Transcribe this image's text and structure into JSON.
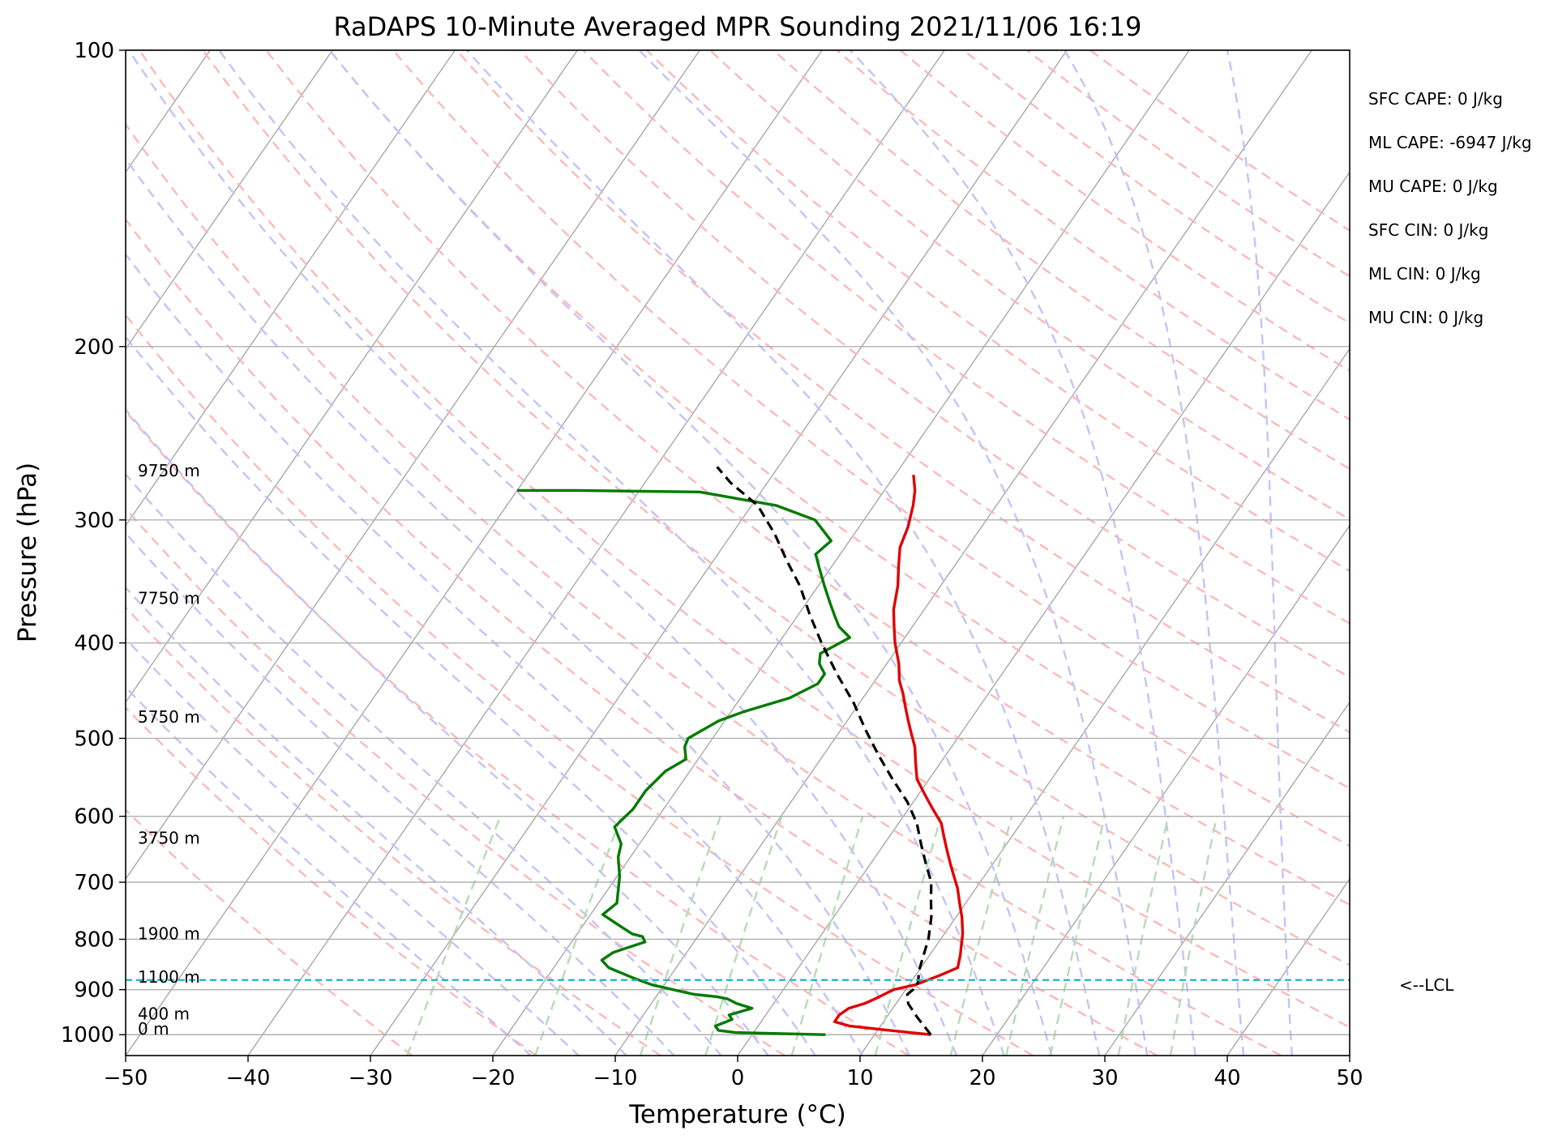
{
  "chart_data": {
    "type": "line",
    "title": "RaDAPS 10-Minute Averaged MPR Sounding 2021/11/06 16:19",
    "xlabel": "Temperature (°C)",
    "ylabel": "Pressure (hPa)",
    "xlim": [
      -50,
      50
    ],
    "ylim": [
      1050,
      100
    ],
    "y_scale": "log",
    "x_ticks": [
      -50,
      -40,
      -30,
      -20,
      -10,
      0,
      10,
      20,
      30,
      40,
      50
    ],
    "x_tick_labels": [
      "−50",
      "−40",
      "−30",
      "−20",
      "−10",
      "0",
      "10",
      "20",
      "30",
      "40",
      "50"
    ],
    "y_ticks": [
      1000,
      900,
      800,
      700,
      600,
      500,
      400,
      300,
      200,
      100
    ],
    "y_tick_labels": [
      "1000",
      "900",
      "800",
      "700",
      "600",
      "500",
      "400",
      "300",
      "200",
      "100"
    ],
    "grid": true,
    "background_lines": {
      "dry_adiabats": "dashed red",
      "moist_adiabats": "dashed blue",
      "mixing_ratio_lines": "dashed green",
      "isotherms": "solid gray skewed"
    },
    "series": [
      {
        "key": "temperature",
        "color": "#e00000",
        "points": [
          [
            14.6,
            1000
          ],
          [
            11.0,
            990
          ],
          [
            7.5,
            980
          ],
          [
            6.0,
            970
          ],
          [
            6.0,
            955
          ],
          [
            6.4,
            940
          ],
          [
            7.4,
            930
          ],
          [
            8.0,
            920
          ],
          [
            8.5,
            910
          ],
          [
            9.0,
            900
          ],
          [
            10.5,
            890
          ],
          [
            12.0,
            870
          ],
          [
            13.0,
            855
          ],
          [
            12.5,
            830
          ],
          [
            12.0,
            810
          ],
          [
            11.5,
            790
          ],
          [
            10.5,
            760
          ],
          [
            9.5,
            735
          ],
          [
            8.5,
            710
          ],
          [
            7.5,
            690
          ],
          [
            6.5,
            670
          ],
          [
            5.5,
            650
          ],
          [
            4.5,
            630
          ],
          [
            3.5,
            610
          ],
          [
            2.0,
            590
          ],
          [
            0.5,
            570
          ],
          [
            -1.0,
            550
          ],
          [
            -2.0,
            530
          ],
          [
            -3.0,
            510
          ],
          [
            -4.0,
            495
          ],
          [
            -5.0,
            480
          ],
          [
            -6.0,
            465
          ],
          [
            -7.0,
            450
          ],
          [
            -8.0,
            437
          ],
          [
            -9.0,
            420
          ],
          [
            -10.5,
            400
          ],
          [
            -11.5,
            385
          ],
          [
            -12.5,
            370
          ],
          [
            -13.5,
            350
          ],
          [
            -14.5,
            335
          ],
          [
            -15.5,
            320
          ],
          [
            -16.0,
            305
          ],
          [
            -16.8,
            290
          ],
          [
            -17.5,
            280
          ],
          [
            -18.5,
            270
          ]
        ]
      },
      {
        "key": "dewpoint",
        "color": "#007a00",
        "points": [
          [
            6.0,
            1000
          ],
          [
            -1.5,
            995
          ],
          [
            -3.0,
            990
          ],
          [
            -3.5,
            980
          ],
          [
            -2.5,
            965
          ],
          [
            -3.0,
            955
          ],
          [
            -1.5,
            940
          ],
          [
            -3.0,
            930
          ],
          [
            -4.0,
            920
          ],
          [
            -5.0,
            915
          ],
          [
            -7.0,
            910
          ],
          [
            -8.0,
            905
          ],
          [
            -11.0,
            890
          ],
          [
            -13.0,
            875
          ],
          [
            -15.5,
            855
          ],
          [
            -16.5,
            840
          ],
          [
            -16.0,
            825
          ],
          [
            -14.0,
            805
          ],
          [
            -14.5,
            795
          ],
          [
            -15.5,
            790
          ],
          [
            -17.0,
            775
          ],
          [
            -19.0,
            755
          ],
          [
            -18.5,
            735
          ],
          [
            -19.5,
            700
          ],
          [
            -19.8,
            690
          ],
          [
            -21.0,
            660
          ],
          [
            -21.5,
            640
          ],
          [
            -23.0,
            615
          ],
          [
            -22.5,
            590
          ],
          [
            -22.5,
            565
          ],
          [
            -22.0,
            540
          ],
          [
            -21.0,
            525
          ],
          [
            -21.8,
            510
          ],
          [
            -22.0,
            500
          ],
          [
            -20.5,
            480
          ],
          [
            -19.0,
            470
          ],
          [
            -16.0,
            455
          ],
          [
            -14.5,
            440
          ],
          [
            -14.5,
            430
          ],
          [
            -15.5,
            420
          ],
          [
            -16.0,
            410
          ],
          [
            -14.5,
            395
          ],
          [
            -16.0,
            385
          ],
          [
            -17.0,
            375
          ],
          [
            -18.0,
            365
          ],
          [
            -19.5,
            350
          ],
          [
            -21.0,
            335
          ],
          [
            -22.0,
            325
          ],
          [
            -21.5,
            315
          ],
          [
            -24.0,
            300
          ],
          [
            -28.0,
            290
          ],
          [
            -35.0,
            281
          ],
          [
            -45.0,
            280
          ],
          [
            -50.0,
            280
          ]
        ]
      },
      {
        "key": "parcel",
        "color": "#000000",
        "style": "dashed",
        "points": [
          [
            14.6,
            1000
          ],
          [
            12.5,
            960
          ],
          [
            11.0,
            930
          ],
          [
            10.4,
            910
          ],
          [
            10.6,
            900
          ],
          [
            10.6,
            885
          ],
          [
            10.0,
            860
          ],
          [
            9.5,
            830
          ],
          [
            9.0,
            800
          ],
          [
            8.0,
            760
          ],
          [
            7.0,
            730
          ],
          [
            6.0,
            700
          ],
          [
            4.5,
            670
          ],
          [
            3.0,
            640
          ],
          [
            1.5,
            610
          ],
          [
            -0.5,
            580
          ],
          [
            -3.0,
            550
          ],
          [
            -5.5,
            520
          ],
          [
            -8.0,
            490
          ],
          [
            -10.5,
            460
          ],
          [
            -13.5,
            430
          ],
          [
            -16.5,
            400
          ],
          [
            -19.0,
            375
          ],
          [
            -21.5,
            350
          ],
          [
            -24.0,
            330
          ],
          [
            -26.5,
            310
          ],
          [
            -29.5,
            290
          ],
          [
            -33.0,
            275
          ],
          [
            -35.0,
            265
          ]
        ]
      }
    ],
    "lcl_pressure": 880,
    "lcl_label": "<--LCL",
    "height_labels": [
      {
        "label": "9750 m",
        "pressure": 271
      },
      {
        "label": "7750 m",
        "pressure": 365
      },
      {
        "label": "5750 m",
        "pressure": 482
      },
      {
        "label": "3750 m",
        "pressure": 640
      },
      {
        "label": "1900 m",
        "pressure": 800
      },
      {
        "label": "1100 m",
        "pressure": 885
      },
      {
        "label": "400 m",
        "pressure": 965
      },
      {
        "label": "0 m",
        "pressure": 1000
      }
    ],
    "indices": [
      {
        "label": "SFC CAPE: 0 J/kg"
      },
      {
        "label": "ML CAPE: -6947 J/kg"
      },
      {
        "label": "MU CAPE: 0 J/kg"
      },
      {
        "label": "SFC CIN: 0 J/kg"
      },
      {
        "label": "ML CIN: 0 J/kg"
      },
      {
        "label": "MU CIN: 0 J/kg"
      }
    ]
  }
}
